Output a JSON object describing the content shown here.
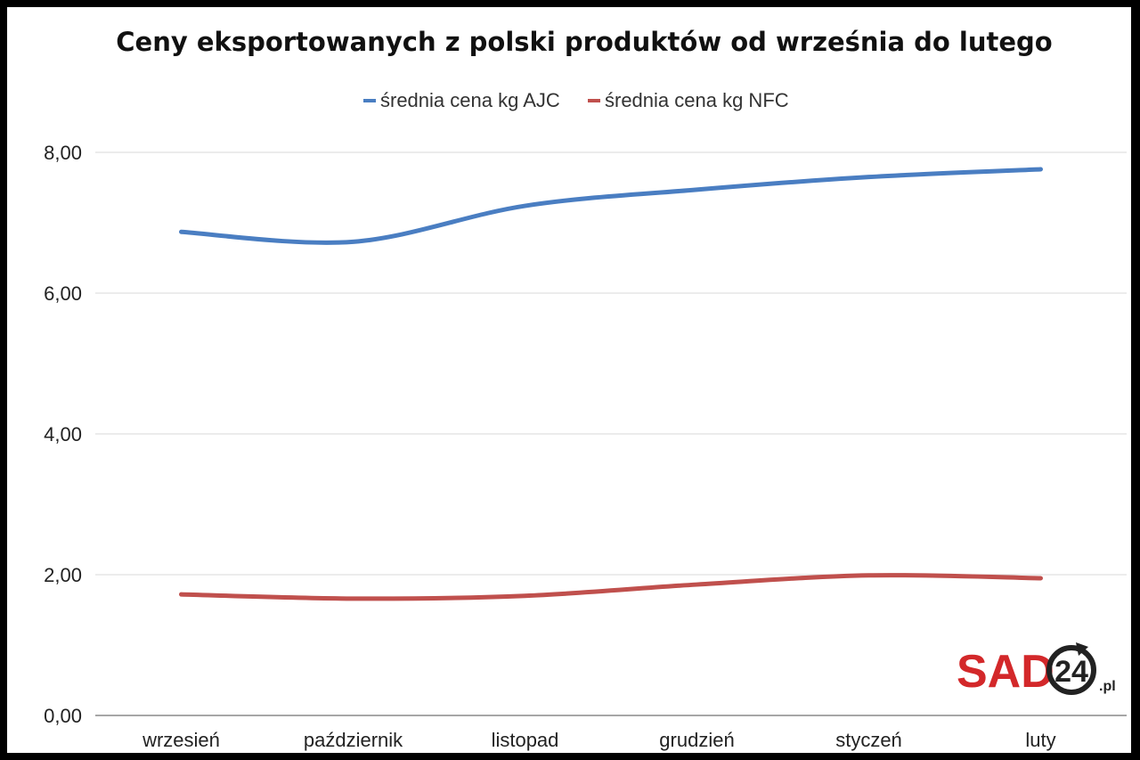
{
  "chart_data": {
    "type": "line",
    "title": "Ceny eksportowanych z polski produktów od września do lutego",
    "categories": [
      "wrzesień",
      "październik",
      "listopad",
      "grudzień",
      "styczeń",
      "luty"
    ],
    "series": [
      {
        "name": "średnia cena kg AJC",
        "color": "#4a7ec2",
        "values": [
          6.87,
          6.73,
          7.24,
          7.47,
          7.65,
          7.76
        ]
      },
      {
        "name": "średnia cena kg NFC",
        "color": "#c0504d",
        "values": [
          1.72,
          1.66,
          1.7,
          1.86,
          1.99,
          1.95
        ]
      }
    ],
    "ylim": [
      0,
      8
    ],
    "yticks": [
      "0,00",
      "2,00",
      "4,00",
      "6,00",
      "8,00"
    ],
    "ytick_values": [
      0,
      2,
      4,
      6,
      8
    ],
    "grid": true,
    "smooth": true,
    "legend_position": "top",
    "xlabel": "",
    "ylabel": ""
  },
  "logo": {
    "text": "SAD24.pl",
    "main": "SAD",
    "number": "24",
    "suffix": ".pl",
    "color": "#d3282a"
  }
}
